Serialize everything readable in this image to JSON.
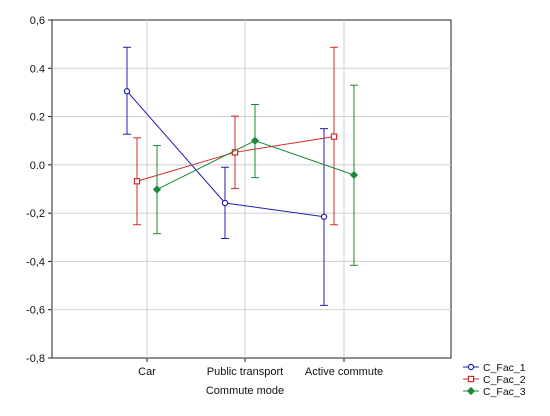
{
  "chart_data": {
    "type": "line",
    "title": "",
    "xlabel": "Commute mode",
    "ylabel": "",
    "categories": [
      "Car",
      "Public transport",
      "Active commute"
    ],
    "ylim": [
      -0.8,
      0.6
    ],
    "yticks": [
      -0.8,
      -0.6,
      -0.4,
      -0.2,
      0.0,
      0.2,
      0.4,
      0.6
    ],
    "ytick_labels": [
      "-0,8",
      "-0,6",
      "-0,4",
      "-0,2",
      "0.0",
      "0.2",
      "0.4",
      "0,6"
    ],
    "grid": true,
    "legend_position": "bottom-right",
    "series": [
      {
        "name": "C_Fac_1",
        "color": "#1f1fb4",
        "marker": "circle",
        "values": [
          0.305,
          -0.158,
          -0.215
        ],
        "err_low": [
          0.127,
          -0.305,
          -0.582
        ],
        "err_high": [
          0.487,
          -0.01,
          0.15
        ]
      },
      {
        "name": "C_Fac_2",
        "color": "#d62a2a",
        "marker": "square",
        "values": [
          -0.068,
          0.052,
          0.117
        ],
        "err_low": [
          -0.248,
          -0.098,
          -0.248
        ],
        "err_high": [
          0.112,
          0.202,
          0.487
        ]
      },
      {
        "name": "C_Fac_3",
        "color": "#1a8a3a",
        "marker": "diamond",
        "values": [
          -0.102,
          0.1,
          -0.042
        ],
        "err_low": [
          -0.285,
          -0.053,
          -0.416
        ],
        "err_high": [
          0.08,
          0.25,
          0.33
        ]
      }
    ]
  }
}
